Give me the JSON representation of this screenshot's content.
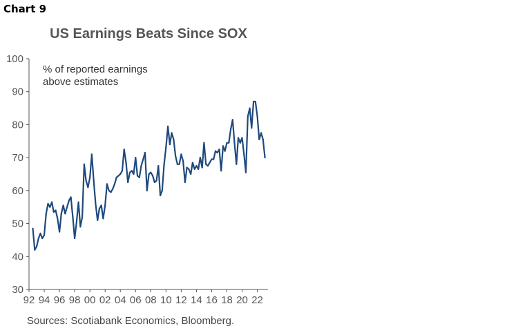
{
  "header": {
    "chart_label": "Chart 9"
  },
  "footer": {
    "source": "Sources: Scotiabank Economics, Bloomberg."
  },
  "chart_data": {
    "type": "line",
    "title": "US Earnings Beats Since SOX",
    "annotation": "% of reported earnings above estimates",
    "annotation_lines": [
      "% of reported earnings",
      "above estimates"
    ],
    "xlabel": "",
    "ylabel": "",
    "ylim": [
      30,
      100
    ],
    "yticks": [
      30,
      40,
      50,
      60,
      70,
      80,
      90,
      100
    ],
    "xlim": [
      1992,
      2023.4
    ],
    "xticks": [
      1992,
      1994,
      1996,
      1998,
      2000,
      2002,
      2004,
      2006,
      2008,
      2010,
      2012,
      2014,
      2016,
      2018,
      2020,
      2022
    ],
    "xtick_labels": [
      "92",
      "94",
      "96",
      "98",
      "00",
      "02",
      "04",
      "06",
      "08",
      "10",
      "12",
      "14",
      "16",
      "18",
      "20",
      "22"
    ],
    "grid": false,
    "legend": false,
    "colors": {
      "line": "#1f497d",
      "axis": "#555555"
    },
    "series": [
      {
        "x": [
          1992.5,
          1992.75,
          1993.0,
          1993.25,
          1993.5,
          1993.75,
          1994.0,
          1994.25,
          1994.5,
          1994.75,
          1995.0,
          1995.25,
          1995.5,
          1995.75,
          1996.0,
          1996.25,
          1996.5,
          1996.75,
          1997.0,
          1997.25,
          1997.5,
          1997.75,
          1998.0,
          1998.25,
          1998.5,
          1998.75,
          1999.0,
          1999.25,
          1999.5,
          1999.75,
          2000.0,
          2000.25,
          2000.5,
          2000.75,
          2001.0,
          2001.25,
          2001.5,
          2001.75,
          2002.0,
          2002.25,
          2002.5,
          2002.75,
          2003.0,
          2003.25,
          2003.5,
          2003.75,
          2004.0,
          2004.25,
          2004.5,
          2004.75,
          2005.0,
          2005.25,
          2005.5,
          2005.75,
          2006.0,
          2006.25,
          2006.5,
          2006.75,
          2007.0,
          2007.25,
          2007.5,
          2007.75,
          2008.0,
          2008.25,
          2008.5,
          2008.75,
          2009.0,
          2009.25,
          2009.5,
          2009.75,
          2010.0,
          2010.25,
          2010.5,
          2010.75,
          2011.0,
          2011.25,
          2011.5,
          2011.75,
          2012.0,
          2012.25,
          2012.5,
          2012.75,
          2013.0,
          2013.25,
          2013.5,
          2013.75,
          2014.0,
          2014.25,
          2014.5,
          2014.75,
          2015.0,
          2015.25,
          2015.5,
          2015.75,
          2016.0,
          2016.25,
          2016.5,
          2016.75,
          2017.0,
          2017.25,
          2017.5,
          2017.75,
          2018.0,
          2018.25,
          2018.5,
          2018.75,
          2019.0,
          2019.25,
          2019.5,
          2019.75,
          2020.0,
          2020.25,
          2020.5,
          2020.75,
          2021.0,
          2021.25,
          2021.5,
          2021.75,
          2022.0,
          2022.25,
          2022.5,
          2022.75,
          2023.0
        ],
        "values": [
          48.5,
          42,
          43,
          45.5,
          47,
          45.5,
          46.5,
          53,
          56,
          55,
          56.5,
          53.5,
          54,
          51.5,
          47.5,
          53,
          55.5,
          53,
          55,
          57,
          58,
          52,
          45.5,
          50.5,
          56.5,
          49,
          52,
          68,
          63,
          61,
          64,
          71,
          63,
          56,
          51,
          54.5,
          55.5,
          51.5,
          55.5,
          62,
          60,
          59.5,
          60.5,
          62,
          64,
          64.5,
          65,
          66,
          72.5,
          68.5,
          62.5,
          65.5,
          66,
          65,
          70,
          64.5,
          64,
          67.5,
          69.5,
          71.5,
          60,
          65,
          65.5,
          64.5,
          62.5,
          63,
          67.5,
          58.5,
          60,
          68,
          73,
          79.5,
          74,
          77.5,
          75.5,
          70.5,
          68,
          68,
          71,
          69,
          62.5,
          67,
          66.5,
          65,
          68.5,
          66.5,
          67.5,
          66.5,
          70,
          67,
          74.5,
          68,
          67.5,
          68.5,
          69.5,
          69.5,
          72,
          71.5,
          72.5,
          66,
          73.5,
          72,
          74.5,
          74.5,
          78.5,
          81.5,
          74.5,
          68,
          76,
          74.5,
          76,
          71,
          65.5,
          82.5,
          85,
          79,
          87,
          87,
          82.5,
          75.5,
          77.5,
          75.5,
          70
        ]
      }
    ]
  }
}
